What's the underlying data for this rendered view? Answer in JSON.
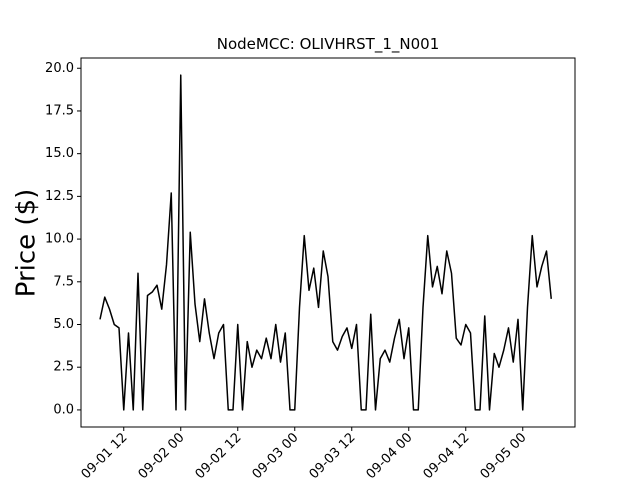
{
  "chart_data": {
    "type": "line",
    "title": "NodeMCC: OLIVHRST_1_N001",
    "y_label": "Price ($)",
    "x": [
      "09-01 07",
      "09-01 08",
      "09-01 09",
      "09-01 10",
      "09-01 11",
      "09-01 12",
      "09-01 13",
      "09-01 14",
      "09-01 15",
      "09-01 16",
      "09-01 17",
      "09-01 18",
      "09-01 19",
      "09-01 20",
      "09-01 21",
      "09-01 22",
      "09-01 23",
      "09-02 00",
      "09-02 01",
      "09-02 02",
      "09-02 03",
      "09-02 04",
      "09-02 05",
      "09-02 06",
      "09-02 07",
      "09-02 08",
      "09-02 09",
      "09-02 10",
      "09-02 11",
      "09-02 12",
      "09-02 13",
      "09-02 14",
      "09-02 15",
      "09-02 16",
      "09-02 17",
      "09-02 18",
      "09-02 19",
      "09-02 20",
      "09-02 21",
      "09-02 22",
      "09-02 23",
      "09-03 00",
      "09-03 01",
      "09-03 02",
      "09-03 03",
      "09-03 04",
      "09-03 05",
      "09-03 06",
      "09-03 07",
      "09-03 08",
      "09-03 09",
      "09-03 10",
      "09-03 11",
      "09-03 12",
      "09-03 13",
      "09-03 14",
      "09-03 15",
      "09-03 16",
      "09-03 17",
      "09-03 18",
      "09-03 19",
      "09-03 20",
      "09-03 21",
      "09-03 22",
      "09-03 23",
      "09-04 00",
      "09-04 01",
      "09-04 02",
      "09-04 03",
      "09-04 04",
      "09-04 05",
      "09-04 06",
      "09-04 07",
      "09-04 08",
      "09-04 09",
      "09-04 10",
      "09-04 11",
      "09-04 12",
      "09-04 13",
      "09-04 14",
      "09-04 15",
      "09-04 16",
      "09-04 17",
      "09-04 18",
      "09-04 19",
      "09-04 20",
      "09-04 21",
      "09-04 22",
      "09-04 23",
      "09-05 00",
      "09-05 01",
      "09-05 02",
      "09-05 03",
      "09-05 04",
      "09-05 05",
      "09-05 06"
    ],
    "series": [
      {
        "color": "#000000",
        "values": [
          5.3,
          6.6,
          5.9,
          5.0,
          4.8,
          0,
          4.5,
          0,
          8.0,
          0,
          6.7,
          6.9,
          7.3,
          5.9,
          8.5,
          12.7,
          0,
          19.6,
          0,
          10.4,
          6.2,
          4.0,
          6.5,
          4.5,
          3.0,
          4.5,
          5.0,
          0,
          0,
          5.0,
          0,
          4.0,
          2.5,
          3.5,
          3.0,
          4.2,
          3.0,
          5.0,
          2.8,
          4.5,
          0,
          0,
          6.0,
          10.2,
          7.0,
          8.3,
          6.0,
          9.3,
          7.8,
          4.0,
          3.5,
          4.3,
          4.8,
          3.6,
          5.0,
          0,
          0,
          5.6,
          0,
          3.0,
          3.5,
          2.8,
          4.2,
          5.3,
          3.0,
          4.8,
          0,
          0,
          6.0,
          10.2,
          7.2,
          8.4,
          6.8,
          9.3,
          8.0,
          4.2,
          3.8,
          5.0,
          4.5,
          0,
          0,
          5.5,
          0,
          3.3,
          2.5,
          3.5,
          4.8,
          2.8,
          5.3,
          0,
          6.0,
          10.2,
          7.2,
          8.4,
          9.3,
          6.5
        ]
      }
    ],
    "xlim": [
      "09-01 03",
      "09-05 11"
    ],
    "xticks": [
      "09-01 12",
      "09-02 00",
      "09-02 12",
      "09-03 00",
      "09-03 12",
      "09-04 00",
      "09-04 12",
      "09-05 00"
    ],
    "ylim": [
      -1,
      20.6
    ],
    "yticks": [
      {
        "value": 0,
        "label": "0.0"
      },
      {
        "value": 2.5,
        "label": "2.5"
      },
      {
        "value": 5,
        "label": "5.0"
      },
      {
        "value": 7.5,
        "label": "7.5"
      },
      {
        "value": 10,
        "label": "10.0"
      },
      {
        "value": 12.5,
        "label": "12.5"
      },
      {
        "value": 15,
        "label": "15.0"
      },
      {
        "value": 17.5,
        "label": "17.5"
      },
      {
        "value": 20,
        "label": "20.0"
      }
    ]
  }
}
